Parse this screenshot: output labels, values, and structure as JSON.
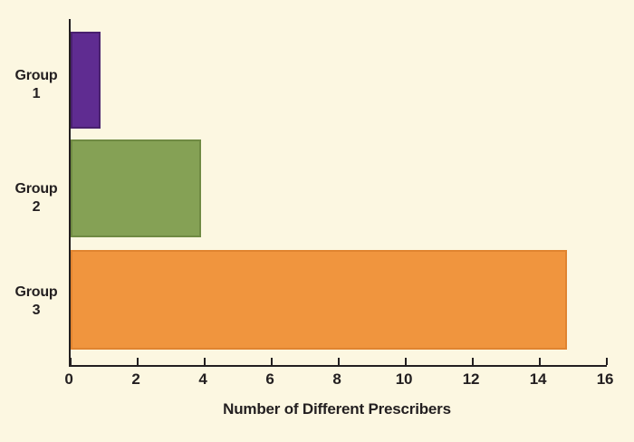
{
  "chart_data": {
    "type": "bar",
    "orientation": "horizontal",
    "title": "",
    "xlabel": "Number of Different Prescribers",
    "ylabel": "",
    "categories": [
      "Group 1",
      "Group 2",
      "Group 3"
    ],
    "values": [
      0.9,
      3.9,
      14.8
    ],
    "bar_colors": [
      "#5F2C91",
      "#85A155",
      "#F0953E"
    ],
    "bar_border_colors": [
      "#49216E",
      "#6F8A43",
      "#E08430"
    ],
    "xlim": [
      0,
      16
    ],
    "xticks": [
      0,
      2,
      4,
      6,
      8,
      10,
      12,
      14,
      16
    ],
    "grid": false,
    "legend": false,
    "background_color": "#FCF7E1",
    "axis_color": "#231F20"
  }
}
